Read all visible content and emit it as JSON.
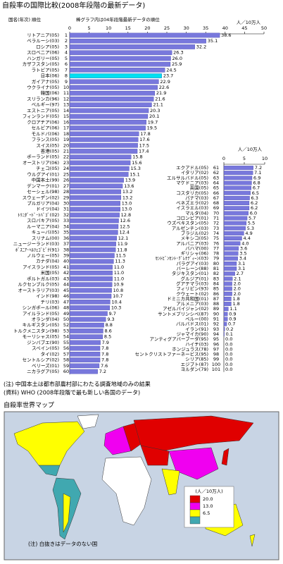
{
  "title": "自殺率の国際比較(2008年段階の最新データ)",
  "header": {
    "country_rank": "国名(年次) 順位",
    "bar_note": "棒グラフ内は04年段階最新データの順位"
  },
  "chart_data": [
    {
      "type": "bar",
      "orientation": "horizontal",
      "xlabel": "人／10万人",
      "color": "#7878dc",
      "highlight_index": 7,
      "highlight_color": "#00e0f0",
      "xlim": [
        0,
        50
      ],
      "xticks": [
        0,
        5,
        10,
        15,
        20,
        25,
        30,
        35,
        40,
        45,
        50
      ],
      "categories": [
        "リトアニア(05)",
        "ベラルーシ(03)",
        "ロシア(05)",
        "スロベニア(06)",
        "ハンガリー(05)",
        "カザフスタン(05)",
        "ラトビア(05)",
        "日本(06)",
        "ガイアナ(05)",
        "ウクライナ(05)",
        "韓国(06)",
        "スリランカ(96)",
        "ベルギー(97)",
        "エストニア(05)",
        "フィンランド(05)",
        "クロアチア(06)",
        "セルビア(06)",
        "モルドバ(06)",
        "フランス(05)",
        "スイス(05)",
        "香港(05)",
        "ポーランド(05)",
        "オーストリア(06)",
        "チェコ(05)",
        "ウルグアイ(01)",
        "中国本土(99)",
        "デンマーク(01)",
        "セーシェル(98)",
        "スウェーデン(02)",
        "ブルガリア(04)",
        "ドイツ(04)",
        "ﾄﾘﾆﾀﾞｰﾄﾞ･ﾄﾊﾞｺﾞ(02)",
        "スロバキア(05)",
        "ルーマニア(04)",
        "キューバ(05)",
        "スリナム(00)",
        "ニュージーランド(03)",
        "ﾎﾞｽﾆｱ･ﾍﾙﾂｪｺﾞﾋﾞﾅ(91)",
        "ノルウェー(05)",
        "カナダ(04)",
        "アイスランド(05)",
        "米国(05)",
        "ポルトガル(03)",
        "ルクセンブルク(05)",
        "オーストラリア(03)",
        "インド(98)",
        "チリ(03)",
        "シンガポール(06)",
        "アイルランド(05)",
        "オランダ(04)",
        "キルギスタン(05)",
        "トルクメニスタン(98)",
        "モーリシャス(05)",
        "ジンバブエ(90)",
        "スペイン(05)",
        "タイ(02)",
        "セントルシア(02)",
        "ベリーズ(01)",
        "ニカラグア(05)"
      ],
      "ranks": [
        1,
        2,
        3,
        4,
        5,
        6,
        7,
        8,
        9,
        10,
        11,
        12,
        13,
        14,
        15,
        16,
        17,
        18,
        19,
        20,
        21,
        22,
        23,
        24,
        25,
        26,
        27,
        28,
        29,
        30,
        31,
        32,
        33,
        34,
        35,
        36,
        37,
        38,
        39,
        40,
        41,
        42,
        43,
        44,
        45,
        46,
        47,
        48,
        49,
        50,
        52,
        53,
        54,
        55,
        56,
        57,
        58,
        59,
        60
      ],
      "values": [
        38.6,
        35.1,
        32.2,
        26.3,
        26.0,
        25.9,
        24.5,
        23.7,
        22.9,
        22.6,
        21.9,
        21.6,
        21.1,
        20.3,
        20.1,
        19.7,
        19.5,
        17.8,
        17.6,
        17.5,
        17.4,
        15.8,
        15.6,
        15.3,
        15.1,
        13.9,
        13.6,
        13.2,
        13.2,
        13.0,
        13.0,
        12.8,
        12.6,
        12.5,
        12.4,
        12.1,
        11.9,
        11.8,
        11.5,
        11.3,
        11.0,
        11.0,
        11.0,
        10.9,
        10.8,
        10.7,
        10.4,
        10.3,
        9.7,
        9.3,
        8.8,
        8.6,
        8.5,
        7.9,
        7.8,
        7.8,
        7.8,
        7.6,
        7.2
      ],
      "value_labels": [
        "38.6",
        "35.1",
        "32.2",
        "26.3",
        "26.0",
        "25.9",
        "24.5",
        "23.7",
        "22.9",
        "22.6",
        "21.9",
        "21.6",
        "21.1",
        "20.3",
        "20.1",
        "19.7",
        "19.5",
        "17.8",
        "17.6",
        "17.5",
        "17.4",
        "15.8",
        "15.6",
        "15.3",
        "15.1",
        "13.9",
        "13.6",
        "13.2",
        "13.2",
        "13.0",
        "13.0",
        "12.8",
        "12.6",
        "12.5",
        "12.4",
        "12.1",
        "11.9",
        "11.8",
        "11.5",
        "11.3",
        "11.0",
        "11.0",
        "11.0",
        "10.9",
        "10.8",
        "10.7",
        "10.4",
        "10.3",
        "9.7",
        "9.3",
        "8.8",
        "8.6",
        "8.5",
        "7.9",
        "7.8",
        "7.8",
        "7.8",
        "7.6",
        "7.2"
      ]
    },
    {
      "type": "bar",
      "orientation": "horizontal",
      "xlabel": "人／10万人",
      "color": "#7878dc",
      "xlim": [
        0,
        10
      ],
      "xticks": [
        0,
        5,
        10
      ],
      "categories": [
        "エクアドル(05)",
        "イタリア(02)",
        "エルサルバドル(05)",
        "マケドニア(03)",
        "英国(05)",
        "コスタリカ(05)",
        "パナマ(03)",
        "ベネズエラ(02)",
        "イスラエル(03)",
        "マルタ(04)",
        "コロンビア(01)",
        "ウズベキスタン(05)",
        "アルゼンチン(03)",
        "ブラジル(02)",
        "メキシコ(05)",
        "アルバニア(03)",
        "バハマ(00)",
        "ギリシャ(06)",
        "ｾﾝﾄﾋﾞﾝｾﾝﾄ･ｸﾞﾚﾅﾃﾞｨｰﾝ(03)",
        "パラグアイ(03)",
        "バーレーン(88)",
        "タジキスタン(01)",
        "グルジア(01)",
        "グアテマラ(03)",
        "フィリピン(93)",
        "クウェート(02)",
        "ドミニカ共和国(01)",
        "アルメニア(03)",
        "アゼルバイジャン(02)",
        "サントメプリンシペ(87)",
        "ペルー(00)",
        "バルバドス(01)",
        "イラン(91)",
        "ジャマイカ(90)",
        "アンティグアバーブーダ(95)",
        "ハイチ(03)",
        "ホンジュラス(78)",
        "セントクリストファーネービス(95)",
        "シリア(85)",
        "エジプト(87)",
        "ヨルダン(79)"
      ],
      "ranks": [
        61,
        62,
        63,
        64,
        65,
        66,
        67,
        68,
        69,
        70,
        71,
        72,
        73,
        74,
        75,
        76,
        77,
        78,
        79,
        80,
        81,
        82,
        83,
        84,
        85,
        86,
        87,
        88,
        89,
        90,
        91,
        92,
        93,
        94,
        95,
        96,
        97,
        98,
        99,
        100,
        101
      ],
      "values": [
        7.2,
        7.1,
        6.9,
        6.8,
        6.7,
        6.5,
        6.3,
        6.2,
        6.2,
        6.0,
        5.7,
        5.5,
        5.3,
        4.9,
        4.4,
        4.0,
        3.6,
        3.5,
        3.4,
        3.1,
        3.1,
        2.7,
        2.1,
        2.0,
        2.0,
        2.0,
        1.8,
        1.8,
        1.1,
        0.9,
        0.9,
        0.7,
        0.2,
        0.1,
        0.0,
        0.0,
        0.0,
        0.0,
        0.0,
        0.0,
        0.0
      ],
      "value_labels": [
        "7.2",
        "7.1",
        "6.9",
        "6.8",
        "6.7",
        "6.5",
        "6.3",
        "6.2",
        "6.2",
        "6.0",
        "5.7",
        "5.5",
        "5.3",
        "4.9",
        "4.4",
        "4.0",
        "3.6",
        "3.5",
        "3.4",
        "3.1",
        "3.1",
        "2.7",
        "2.1",
        "2.0",
        "2.0",
        "2.0",
        "1.8",
        "1.8",
        "1.1",
        "0.9",
        "0.9",
        "0.7",
        "0.2",
        "0.1",
        "0.0",
        "0.0",
        "0.0",
        "0.0",
        "0.0",
        "0.0",
        "0.0"
      ]
    }
  ],
  "notes": [
    "(注) 中国本土は都市部農村部にわたる調査地域のみの結果",
    "(資料) WHO (2008年段階で最も新しい各国のデータ)"
  ],
  "map": {
    "title": "自殺率世界マップ",
    "legend_unit": "(人／10万人)",
    "legend_colors": [
      "#e00000",
      "#f000f0",
      "#ffff00",
      "#40a8b0"
    ],
    "legend_labels": [
      "20.0",
      "13.0",
      "6.5"
    ],
    "note": "(注) 白抜きはデータのない国"
  }
}
